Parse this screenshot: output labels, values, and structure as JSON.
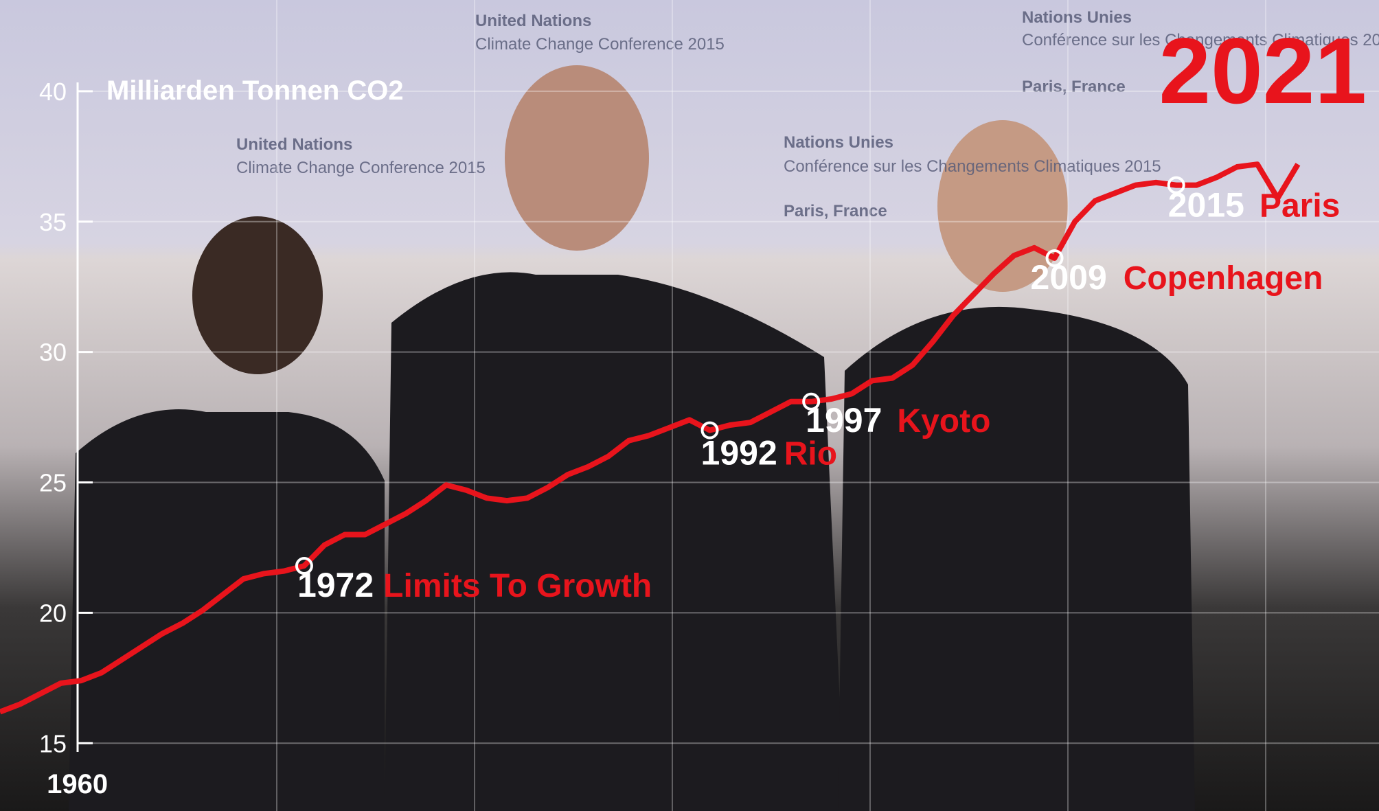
{
  "chart_data": {
    "type": "line",
    "current_year": "2021",
    "ylabel": "Milliarden Tonnen CO2",
    "x": [
      1957,
      1958,
      1959,
      1960,
      1961,
      1962,
      1963,
      1964,
      1965,
      1966,
      1967,
      1968,
      1969,
      1970,
      1971,
      1972,
      1973,
      1974,
      1975,
      1976,
      1977,
      1978,
      1979,
      1980,
      1981,
      1982,
      1983,
      1984,
      1985,
      1986,
      1987,
      1988,
      1989,
      1990,
      1991,
      1992,
      1993,
      1994,
      1995,
      1996,
      1997,
      1998,
      1999,
      2000,
      2001,
      2002,
      2003,
      2004,
      2005,
      2006,
      2007,
      2008,
      2009,
      2010,
      2011,
      2012,
      2013,
      2014,
      2015,
      2016,
      2017,
      2018,
      2019,
      2020,
      2021
    ],
    "series": [
      {
        "color": "#e8141c",
        "values": [
          16.2,
          16.5,
          16.9,
          17.3,
          17.4,
          17.7,
          18.2,
          18.7,
          19.2,
          19.6,
          20.1,
          20.7,
          21.3,
          21.5,
          21.6,
          21.8,
          22.6,
          23.0,
          23.0,
          23.4,
          23.8,
          24.3,
          24.9,
          24.7,
          24.4,
          24.3,
          24.4,
          24.8,
          25.3,
          25.6,
          26.0,
          26.6,
          26.8,
          27.1,
          27.4,
          27.0,
          27.2,
          27.3,
          27.7,
          28.1,
          28.1,
          28.2,
          28.4,
          28.9,
          29.0,
          29.5,
          30.4,
          31.4,
          32.2,
          33.0,
          33.7,
          34.0,
          33.6,
          35.0,
          35.8,
          36.1,
          36.4,
          36.5,
          36.4,
          36.4,
          36.7,
          37.1,
          37.2,
          35.9,
          37.2
        ]
      }
    ],
    "xlim": [
      1957,
      2025
    ],
    "ylim": [
      12.4,
      43.5
    ],
    "xticks": [
      1960
    ],
    "yticks": [
      15,
      20,
      25,
      30,
      35,
      40
    ],
    "grid": true,
    "annotations": [
      {
        "year": 1972,
        "label": "Limits To Growth"
      },
      {
        "year": 1992,
        "label": "Rio"
      },
      {
        "year": 1997,
        "label": "Kyoto"
      },
      {
        "year": 2009,
        "label": "Copenhagen"
      },
      {
        "year": 2015,
        "label": "Paris"
      }
    ]
  },
  "background_banner": [
    "United Nations",
    "Climate Change Conference 2015",
    "Nations Unies",
    "Conférence sur les Changements Climatiques 2015",
    "Paris, France"
  ]
}
